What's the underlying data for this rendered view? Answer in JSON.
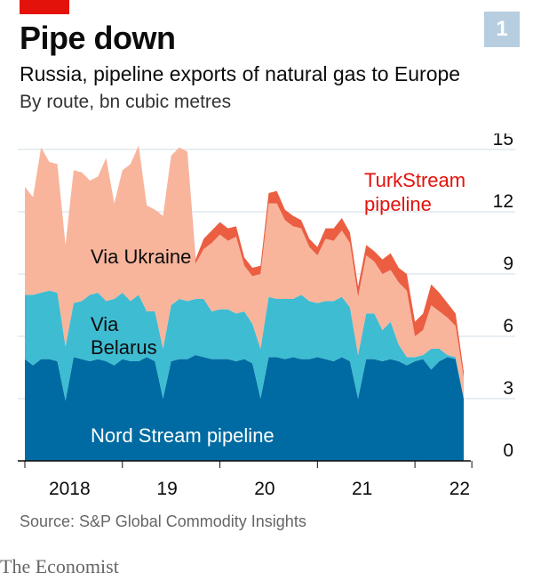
{
  "title": "Pipe down",
  "chart_number": "1",
  "subtitle": "Russia, pipeline exports of natural gas to Europe",
  "units": "By route, bn cubic metres",
  "source": "Source: S&P Global Commodity Insights",
  "footer": "The Economist",
  "colors": {
    "brand_red": "#e3120b",
    "nord_stream": "#006ba2",
    "belarus": "#3ebcd2",
    "ukraine": "#f8b59c",
    "turkstream": "#eb5e42",
    "turkstream_label": "#e3120b",
    "badge": "#b7cee0"
  },
  "chart_data": {
    "type": "area",
    "stacked": true,
    "x": [
      "2018-01",
      "2018-02",
      "2018-03",
      "2018-04",
      "2018-05",
      "2018-06",
      "2018-07",
      "2018-08",
      "2018-09",
      "2018-10",
      "2018-11",
      "2018-12",
      "2019-01",
      "2019-02",
      "2019-03",
      "2019-04",
      "2019-05",
      "2019-06",
      "2019-07",
      "2019-08",
      "2019-09",
      "2019-10",
      "2019-11",
      "2019-12",
      "2020-01",
      "2020-02",
      "2020-03",
      "2020-04",
      "2020-05",
      "2020-06",
      "2020-07",
      "2020-08",
      "2020-09",
      "2020-10",
      "2020-11",
      "2020-12",
      "2021-01",
      "2021-02",
      "2021-03",
      "2021-04",
      "2021-05",
      "2021-06",
      "2021-07",
      "2021-08",
      "2021-09",
      "2021-10",
      "2021-11",
      "2021-12",
      "2022-01",
      "2022-02",
      "2022-03",
      "2022-04",
      "2022-05",
      "2022-06",
      "2022-07"
    ],
    "x_tick_labels": [
      "2018",
      "19",
      "20",
      "21",
      "22"
    ],
    "series": [
      {
        "name": "Nord Stream pipeline",
        "values": [
          4.9,
          4.6,
          4.9,
          4.9,
          4.8,
          2.9,
          5.0,
          4.9,
          4.8,
          4.9,
          4.8,
          4.6,
          4.9,
          4.8,
          4.8,
          5.0,
          4.8,
          3.0,
          4.8,
          4.9,
          4.9,
          5.1,
          5.0,
          4.9,
          4.9,
          4.9,
          4.8,
          4.9,
          4.7,
          3.0,
          5.0,
          5.0,
          4.9,
          5.0,
          4.9,
          4.9,
          5.0,
          4.9,
          4.8,
          5.0,
          4.8,
          3.0,
          4.9,
          4.9,
          4.8,
          4.9,
          4.8,
          4.6,
          4.8,
          4.9,
          4.4,
          4.8,
          5.0,
          4.9,
          3.0
        ]
      },
      {
        "name": "Via Belarus",
        "values": [
          3.1,
          3.4,
          3.2,
          3.3,
          3.3,
          2.6,
          2.6,
          2.8,
          3.2,
          3.2,
          2.9,
          3.2,
          3.2,
          2.9,
          3.2,
          2.2,
          2.4,
          2.4,
          2.7,
          2.9,
          2.8,
          2.7,
          2.8,
          2.3,
          2.4,
          2.4,
          2.3,
          2.3,
          1.9,
          2.4,
          2.9,
          2.8,
          2.9,
          2.8,
          3.1,
          2.8,
          2.6,
          2.8,
          2.9,
          2.9,
          2.6,
          2.1,
          2.2,
          2.2,
          1.5,
          1.8,
          0.8,
          0.4,
          0.2,
          0.2,
          1.0,
          0.6,
          0.1,
          0.1,
          0.0
        ]
      },
      {
        "name": "Via Ukraine",
        "values": [
          5.2,
          4.7,
          7.0,
          6.2,
          6.2,
          4.9,
          6.4,
          6.2,
          5.5,
          5.6,
          6.9,
          4.6,
          5.9,
          6.6,
          7.2,
          5.1,
          4.9,
          6.4,
          7.2,
          7.3,
          7.2,
          1.7,
          2.4,
          3.3,
          3.6,
          3.3,
          3.7,
          2.2,
          2.3,
          3.6,
          4.5,
          4.6,
          3.8,
          3.5,
          3.2,
          2.6,
          2.3,
          3.0,
          2.9,
          3.2,
          3.1,
          2.8,
          2.8,
          2.5,
          2.7,
          2.5,
          3.0,
          3.2,
          1.0,
          1.2,
          2.1,
          1.8,
          1.8,
          1.5,
          1.0
        ]
      },
      {
        "name": "TurkStream pipeline",
        "values": [
          0,
          0,
          0,
          0,
          0,
          0,
          0,
          0,
          0,
          0,
          0,
          0,
          0,
          0,
          0,
          0,
          0,
          0,
          0,
          0,
          0,
          0.2,
          0.5,
          0.6,
          0.6,
          0.6,
          0.5,
          0.4,
          0.4,
          0.4,
          0.5,
          0.6,
          0.5,
          0.5,
          0.4,
          0.4,
          0.4,
          0.5,
          0.6,
          0.6,
          0.5,
          0.5,
          0.5,
          0.5,
          0.7,
          0.8,
          0.7,
          0.8,
          0.7,
          0.8,
          1.0,
          0.9,
          0.7,
          0.6,
          0.3
        ]
      }
    ],
    "y_ticks": [
      0,
      3,
      6,
      9,
      12,
      15
    ],
    "ylim": [
      0,
      15
    ],
    "grid": true,
    "legend": "inline labels",
    "labels": {
      "nord_stream": "Nord Stream pipeline",
      "belarus_line1": "Via",
      "belarus_line2": "Belarus",
      "ukraine": "Via Ukraine",
      "turkstream_line1": "TurkStream",
      "turkstream_line2": "pipeline"
    }
  }
}
